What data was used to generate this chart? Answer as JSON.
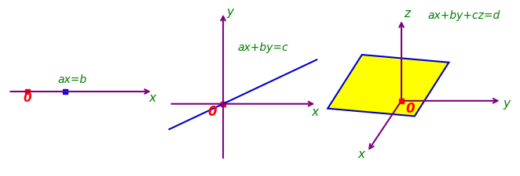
{
  "panel1": {
    "axis_color": "#800080",
    "origin_color": "#ff0000",
    "point_color": "#0000ff",
    "label_color_x": "#008000",
    "label_color_0": "#ff0000",
    "equation_color": "#008000",
    "equation": "ax=b",
    "axis_label": "x",
    "origin_label": "0"
  },
  "panel2": {
    "axis_color": "#800080",
    "origin_color": "#ff0000",
    "line_color": "#0000cc",
    "label_color_y": "#008000",
    "label_color_x": "#008000",
    "label_color_0": "#ff0000",
    "equation_color": "#008000",
    "equation": "ax+by=c",
    "xlabel": "x",
    "ylabel": "y",
    "origin_label": "0"
  },
  "panel3": {
    "axis_color": "#800080",
    "origin_color": "#ff0000",
    "plane_color": "#ffff00",
    "plane_edge_color": "#0000cc",
    "label_color_z": "#008000",
    "label_color_y": "#008000",
    "label_color_x": "#008000",
    "label_color_0": "#ff0000",
    "equation_color": "#008000",
    "equation": "ax+by+cz=d",
    "xlabel": "x",
    "ylabel": "y",
    "zlabel": "z",
    "origin_label": "0"
  },
  "bg_color": "#ffffff"
}
